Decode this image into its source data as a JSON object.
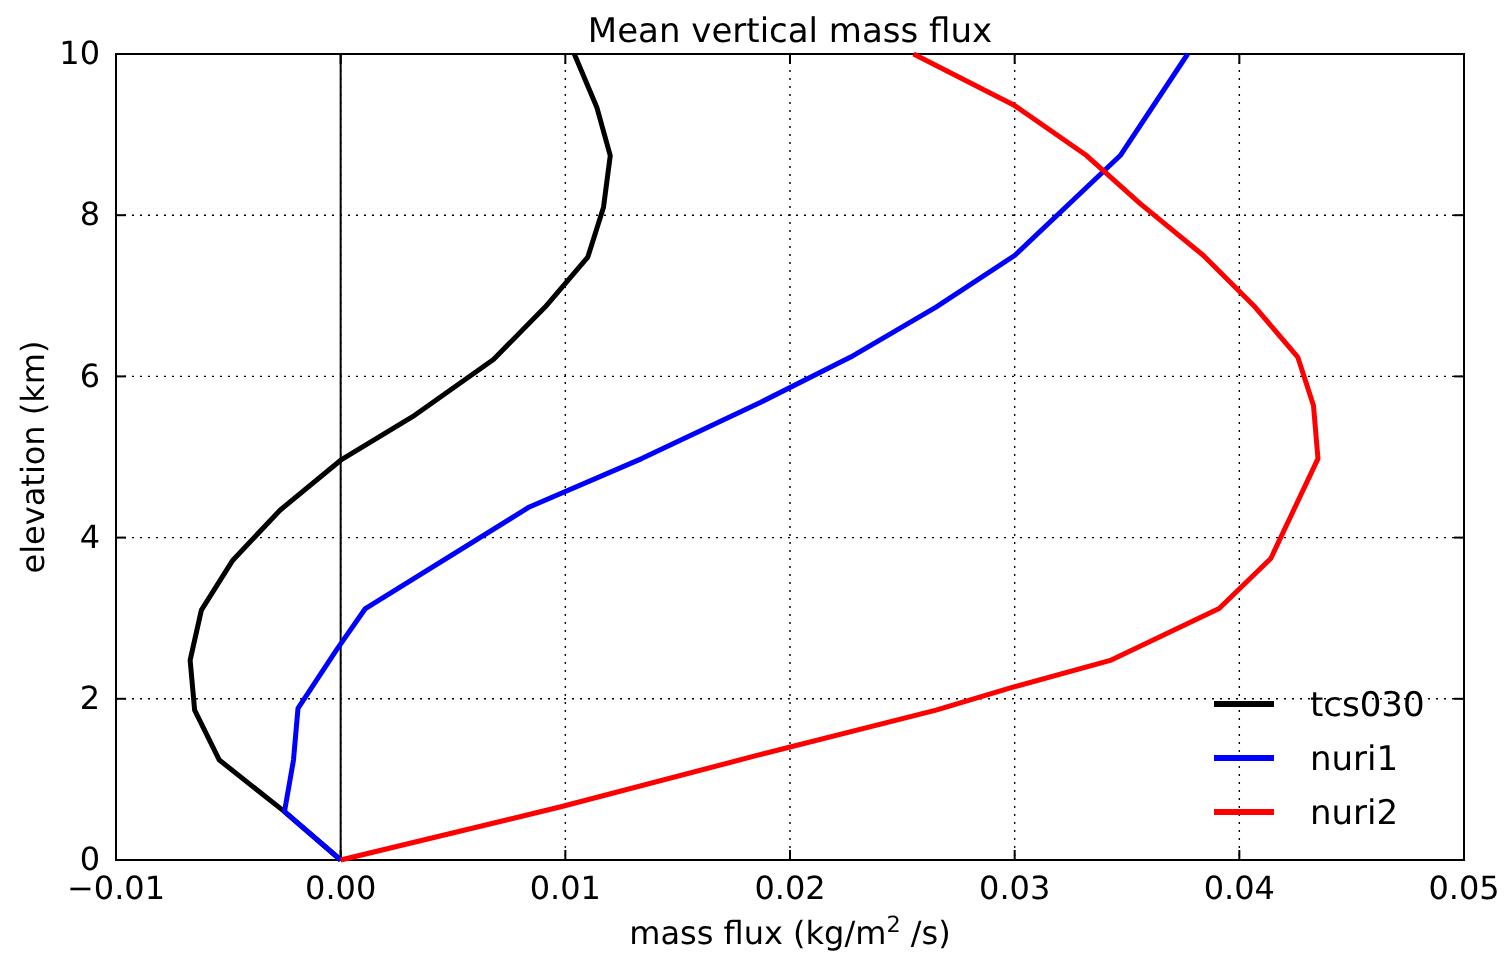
{
  "chart_data": {
    "type": "line",
    "title": "Mean vertical mass flux",
    "xlabel": "mass flux (kg/m$^{2}$ /s)",
    "ylabel": "elevation (km)",
    "xlim": [
      -0.01,
      0.05
    ],
    "ylim": [
      0,
      10
    ],
    "xticks": [
      {
        "value": -0.01,
        "label": "−0.01"
      },
      {
        "value": 0,
        "label": "0.00"
      },
      {
        "value": 0.01,
        "label": "0.01"
      },
      {
        "value": 0.02,
        "label": "0.02"
      },
      {
        "value": 0.03,
        "label": "0.03"
      },
      {
        "value": 0.04,
        "label": "0.04"
      },
      {
        "value": 0.05,
        "label": "0.05"
      }
    ],
    "yticks": [
      0,
      2,
      4,
      6,
      8,
      10
    ],
    "grid": true,
    "legend": "bottom right",
    "line_style": "solid",
    "ref_lines": [
      {
        "axis": "x",
        "value": 0,
        "color": "#000000"
      }
    ],
    "series": [
      {
        "name": "tcs030",
        "color": "#000000",
        "x": [
          0,
          -0.0025,
          -0.0054,
          -0.0065,
          -0.0067,
          -0.0062,
          -0.0048,
          -0.0027,
          0,
          0.0032,
          0.0068,
          0.0091,
          0.011,
          0.0117,
          0.012,
          0.0114,
          0.0104
        ],
        "values": [
          0,
          0.6,
          1.24,
          1.86,
          2.48,
          3.1,
          3.72,
          4.34,
          4.96,
          5.5,
          6.21,
          6.86,
          7.48,
          8.1,
          8.74,
          9.34,
          10
        ]
      },
      {
        "name": "nuri1",
        "color": "#0000ff",
        "x": [
          0,
          -0.0025,
          -0.0021,
          -0.0019,
          -0.0002,
          0.0011,
          0.0084,
          0.0134,
          0.0187,
          0.0227,
          0.0265,
          0.03,
          0.0347,
          0.0377
        ],
        "values": [
          0,
          0.6,
          1.24,
          1.88,
          2.6,
          3.12,
          4.38,
          4.98,
          5.68,
          6.24,
          6.86,
          7.5,
          8.74,
          10
        ]
      },
      {
        "name": "nuri2",
        "color": "#ff0000",
        "x": [
          0,
          0.0098,
          0.0187,
          0.0265,
          0.03,
          0.0343,
          0.0391,
          0.0414,
          0.0435,
          0.0433,
          0.0426,
          0.0407,
          0.0384,
          0.0356,
          0.0332,
          0.03,
          0.0255
        ],
        "values": [
          0,
          0.66,
          1.31,
          1.86,
          2.15,
          2.48,
          3.12,
          3.74,
          4.98,
          5.64,
          6.24,
          6.86,
          7.5,
          8.14,
          8.74,
          9.36,
          10
        ]
      }
    ]
  }
}
